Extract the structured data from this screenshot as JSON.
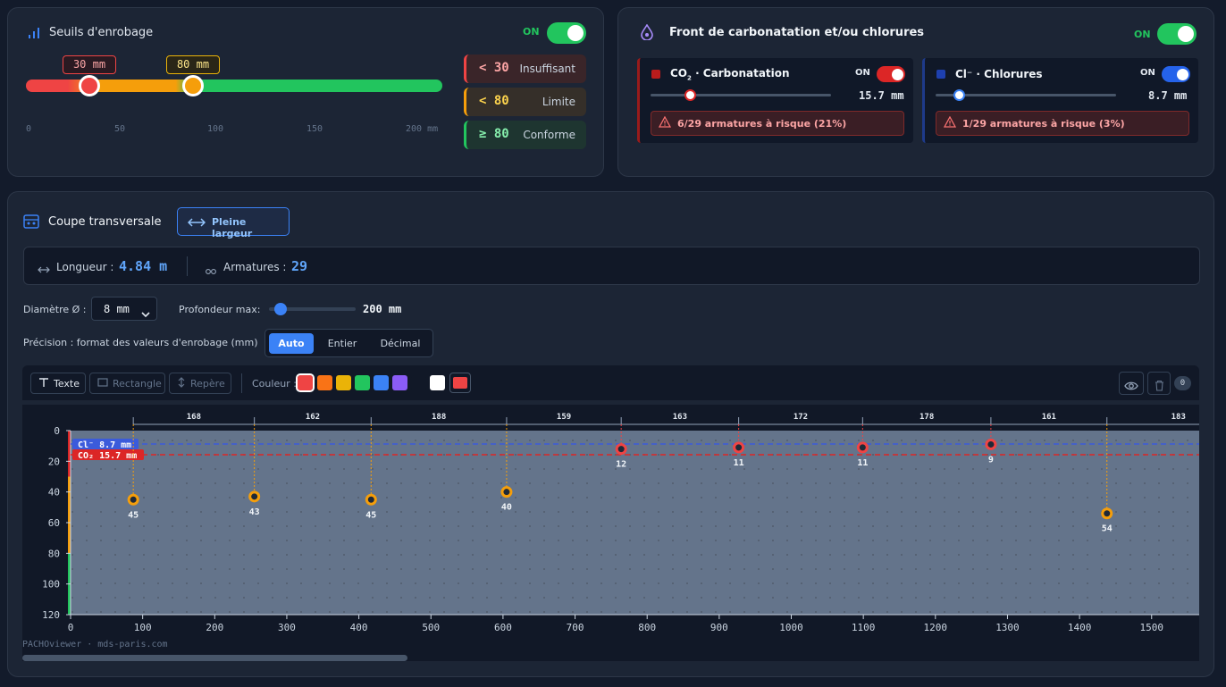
{
  "thresholds": {
    "title": "Seuils d'enrobage",
    "toggle_label": "ON",
    "low_badge": "30 mm",
    "mid_badge": "80 mm",
    "low_value_mm": 30,
    "mid_value_mm": 80,
    "max_mm": 200,
    "scale": [
      "0",
      "50",
      "100",
      "150",
      "200 mm"
    ],
    "levels": [
      {
        "symbol": "< 30",
        "label": "Insuffisant",
        "color": "#ef4444"
      },
      {
        "symbol": "< 80",
        "label": "Limite",
        "color": "#f59e0b"
      },
      {
        "symbol": "≥ 80",
        "label": "Conforme",
        "color": "#22c55e"
      }
    ]
  },
  "front": {
    "title": "Front de carbonatation et/ou chlorures",
    "toggle_label": "ON",
    "co2": {
      "label_pre": "CO",
      "label_sub": "2",
      "label_post": " · Carbonatation",
      "toggle_label": "ON",
      "value": "15.7 mm",
      "level": 0.2,
      "risk": "6/29 armatures à risque (21%)"
    },
    "cl": {
      "label": "Cl⁻ · Chlorures",
      "toggle_label": "ON",
      "value": "8.7 mm",
      "level": 0.13,
      "risk": "1/29 armatures à risque (3%)"
    }
  },
  "section": {
    "title": "Coupe transversale",
    "full_width_button": "Pleine largeur",
    "length_label": "Longueur :",
    "length_value": "4.84 m",
    "bars_label": "Armatures :",
    "bars_value": "29",
    "diameter_label": "Diamètre Ø :",
    "diameter_value": "8 mm",
    "depth_label": "Profondeur max:",
    "depth_value": "200 mm",
    "depth_level": 0.15,
    "precision_label": "Précision : format des valeurs d'enrobage (mm)",
    "precision_options": [
      "Auto",
      "Entier",
      "Décimal"
    ],
    "precision_selected": "Auto"
  },
  "toolbar": {
    "text": "Texte",
    "rectangle": "Rectangle",
    "marker": "Repère",
    "color_label": "Couleur :",
    "colors": [
      "#ef4444",
      "#f97316",
      "#eab308",
      "#22c55e",
      "#3b82f6",
      "#8b5cf6",
      "#111827",
      "#ffffff"
    ],
    "current_color": "#ef4444",
    "count": "0"
  },
  "chart_data": {
    "type": "scatter",
    "x_ticks": [
      "0",
      "100",
      "200",
      "300",
      "400",
      "500",
      "600",
      "700",
      "800",
      "900",
      "1000",
      "1100",
      "1200",
      "1300",
      "1400",
      "1500"
    ],
    "y_ticks": [
      "0",
      "20",
      "40",
      "60",
      "80",
      "100",
      "120"
    ],
    "xlim": [
      0,
      1570
    ],
    "ylim": [
      0,
      120
    ],
    "bars": [
      {
        "x": 87,
        "depth": 45,
        "label": "45"
      },
      {
        "x": 255,
        "depth": 43,
        "label": "43"
      },
      {
        "x": 417,
        "depth": 45,
        "label": "45"
      },
      {
        "x": 605,
        "depth": 40,
        "label": "40"
      },
      {
        "x": 764,
        "depth": 12,
        "label": "12"
      },
      {
        "x": 927,
        "depth": 11,
        "label": "11"
      },
      {
        "x": 1099,
        "depth": 11,
        "label": "11"
      },
      {
        "x": 1277,
        "depth": 9,
        "label": "9"
      },
      {
        "x": 1438,
        "depth": 54,
        "label": "54"
      }
    ],
    "spacings": [
      "168",
      "162",
      "188",
      "159",
      "163",
      "172",
      "178",
      "161",
      "183"
    ],
    "lines": [
      {
        "label": "Cl⁻ 8.7 mm",
        "depth": 8.7,
        "color": "#3b5bdb"
      },
      {
        "label": "CO₂ 15.7 mm",
        "depth": 15.7,
        "color": "#dc2626"
      }
    ],
    "thresholds_mm": [
      30,
      80
    ],
    "watermark": "PACHOviewer · mds-paris.com"
  }
}
